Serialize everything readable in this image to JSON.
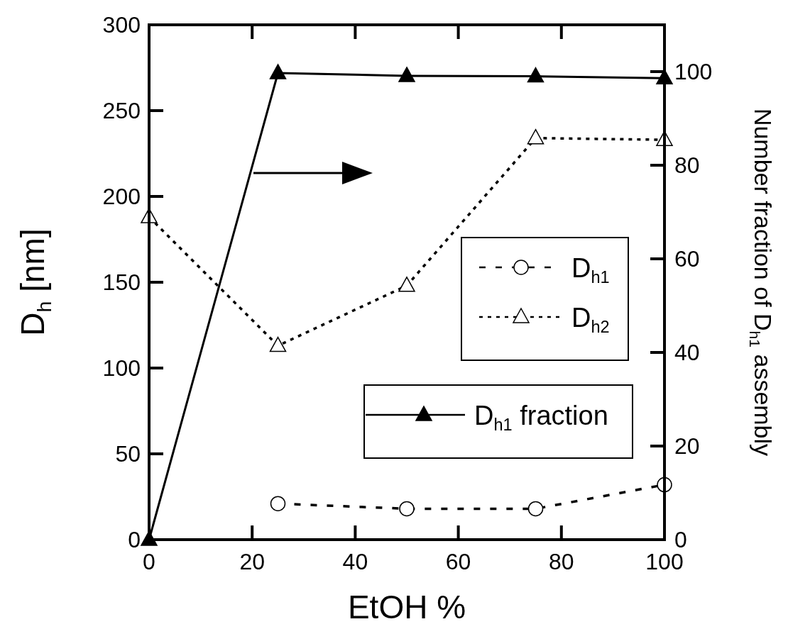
{
  "chart_data": {
    "type": "line",
    "xlabel": "EtOH %",
    "ylabel": "D$_{h}$ [nm]",
    "y2label": "Number fraction of D$_{h1}$ assembly",
    "xlim": [
      0,
      100
    ],
    "xticks": [
      0,
      20,
      40,
      60,
      80,
      100
    ],
    "ylim": [
      0,
      300
    ],
    "yticks": [
      0,
      50,
      100,
      150,
      200,
      250,
      300
    ],
    "y2lim": [
      0,
      110
    ],
    "y2ticks": [
      0,
      20,
      40,
      60,
      80,
      100
    ],
    "legend": "right",
    "grid": false,
    "series": [
      {
        "name": "D$_{h1}$",
        "color": "#000000",
        "x": [
          25,
          50,
          75,
          100
        ],
        "values": [
          21,
          18,
          18,
          32
        ],
        "marker": "circle",
        "line_style": "dashed"
      },
      {
        "name": "D$_{h2}$",
        "color": "#000000",
        "x": [
          0,
          25,
          50,
          75,
          100
        ],
        "values": [
          188,
          113,
          148,
          234,
          233
        ],
        "marker": "triangle",
        "line_style": "dotted"
      },
      {
        "name": "D$_{h1}$ fraction",
        "color": "#000000",
        "x": [
          0,
          25,
          50,
          75,
          100
        ],
        "values": [
          0,
          99.7,
          99.1,
          99.0,
          98.6
        ],
        "marker": "triangle",
        "line_style": "solid",
        "axis": "y2"
      }
    ]
  }
}
